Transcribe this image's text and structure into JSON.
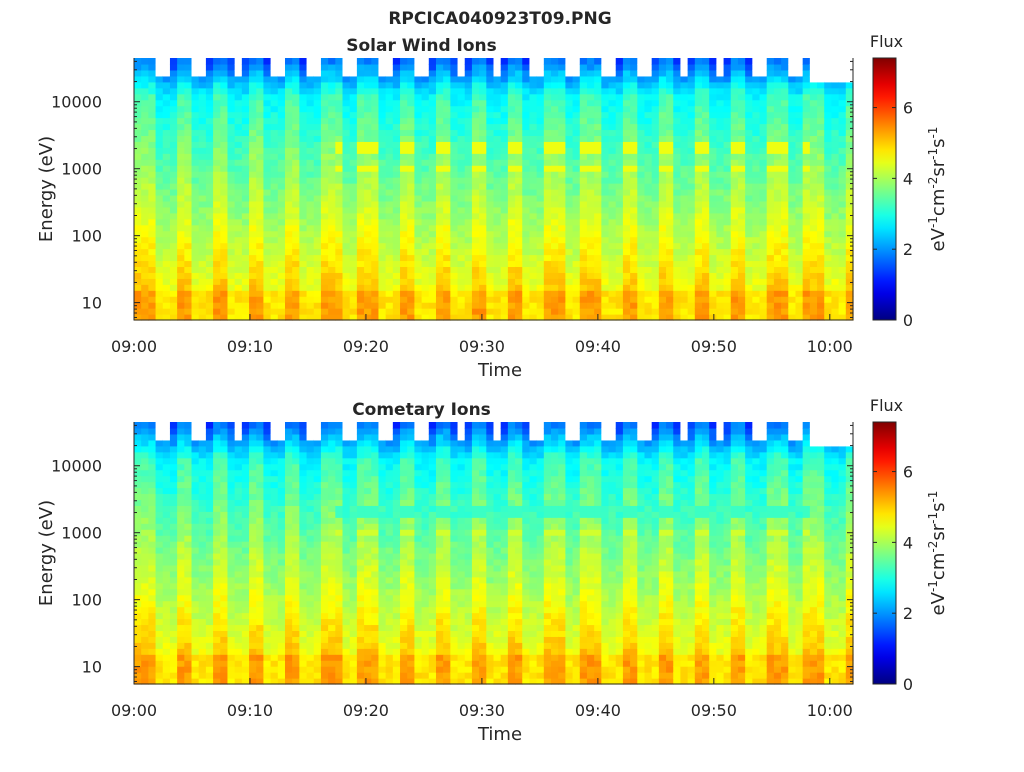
{
  "figure": {
    "title": "RPCICA040923T09.PNG"
  },
  "chart_data": [
    {
      "type": "heatmap",
      "title": "Solar Wind Ions",
      "xlabel": "Time",
      "ylabel": "Energy (eV)",
      "x_ticks": [
        "09:00",
        "09:10",
        "09:20",
        "09:30",
        "09:40",
        "09:50",
        "10:00"
      ],
      "x_range": [
        "09:00",
        "10:02"
      ],
      "y_scale": "log",
      "y_ticks": [
        10,
        100,
        1000,
        10000
      ],
      "y_tick_labels": [
        "10",
        "100",
        "1000",
        "10000"
      ],
      "y_range": [
        5.5,
        45000
      ],
      "colorbar": {
        "title": "Flux",
        "label": "eV-1cm-2sr-1s-1",
        "ticks": [
          0,
          2,
          4,
          6
        ],
        "tick_labels": [
          "0",
          "2",
          "4",
          "6"
        ],
        "range": [
          0,
          7.4
        ],
        "colormap": "jet"
      },
      "peak_band_energies_eV": [
        1000,
        2000
      ],
      "sweep_period_minutes": 3.2,
      "grid": false
    },
    {
      "type": "heatmap",
      "title": "Cometary Ions",
      "xlabel": "Time",
      "ylabel": "Energy (eV)",
      "x_ticks": [
        "09:00",
        "09:10",
        "09:20",
        "09:30",
        "09:40",
        "09:50",
        "10:00"
      ],
      "x_range": [
        "09:00",
        "10:02"
      ],
      "y_scale": "log",
      "y_ticks": [
        10,
        100,
        1000,
        10000
      ],
      "y_tick_labels": [
        "10",
        "100",
        "1000",
        "10000"
      ],
      "y_range": [
        5.5,
        45000
      ],
      "colorbar": {
        "title": "Flux",
        "label": "eV-1cm-2sr-1s-1",
        "ticks": [
          0,
          2,
          4,
          6
        ],
        "tick_labels": [
          "0",
          "2",
          "4",
          "6"
        ],
        "range": [
          0,
          7.4
        ],
        "colormap": "jet"
      },
      "peak_band_energies_eV": [
        1000,
        2000
      ],
      "sweep_period_minutes": 3.2,
      "grid": false
    }
  ]
}
